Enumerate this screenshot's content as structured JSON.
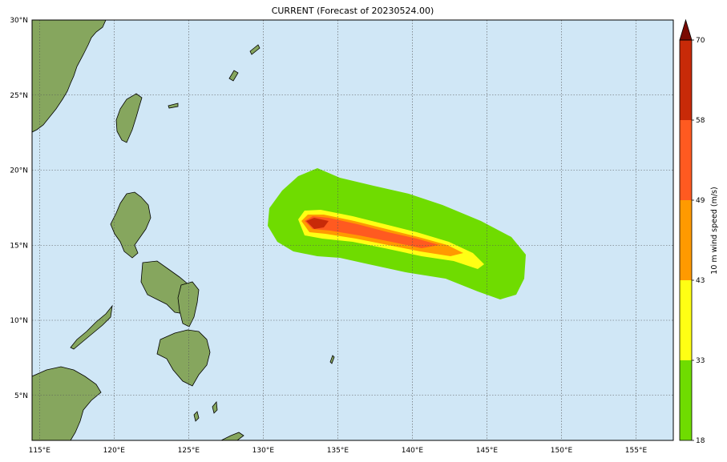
{
  "title": "CURRENT (Forecast of 20230524.00)",
  "map": {
    "extent": {
      "lon_min": 114.5,
      "lon_max": 157.5,
      "lat_min": 2,
      "lat_max": 30
    },
    "lon_ticks": [
      115,
      120,
      125,
      130,
      135,
      140,
      145,
      150,
      155
    ],
    "lon_labels": [
      "115°E",
      "120°E",
      "125°E",
      "130°E",
      "135°E",
      "140°E",
      "145°E",
      "150°E",
      "155°E"
    ],
    "lat_ticks": [
      5,
      10,
      15,
      20,
      25,
      30
    ],
    "lat_labels": [
      "5°N",
      "10°N",
      "15°N",
      "20°N",
      "25°N",
      "30°N"
    ],
    "ocean_color": "#d0e7f6",
    "land_color": "#86a65e",
    "gridlines": true
  },
  "colorbar": {
    "label": "10 m wind speed (m/s)",
    "levels": [
      18,
      33,
      43,
      49,
      58,
      70
    ],
    "level_labels": [
      "18",
      "33",
      "43",
      "49",
      "58",
      "70"
    ],
    "colors": [
      "#6fdc00",
      "#ffff14",
      "#ff9a00",
      "#ff5a20",
      "#c82a08",
      "#7a0a02"
    ]
  }
}
